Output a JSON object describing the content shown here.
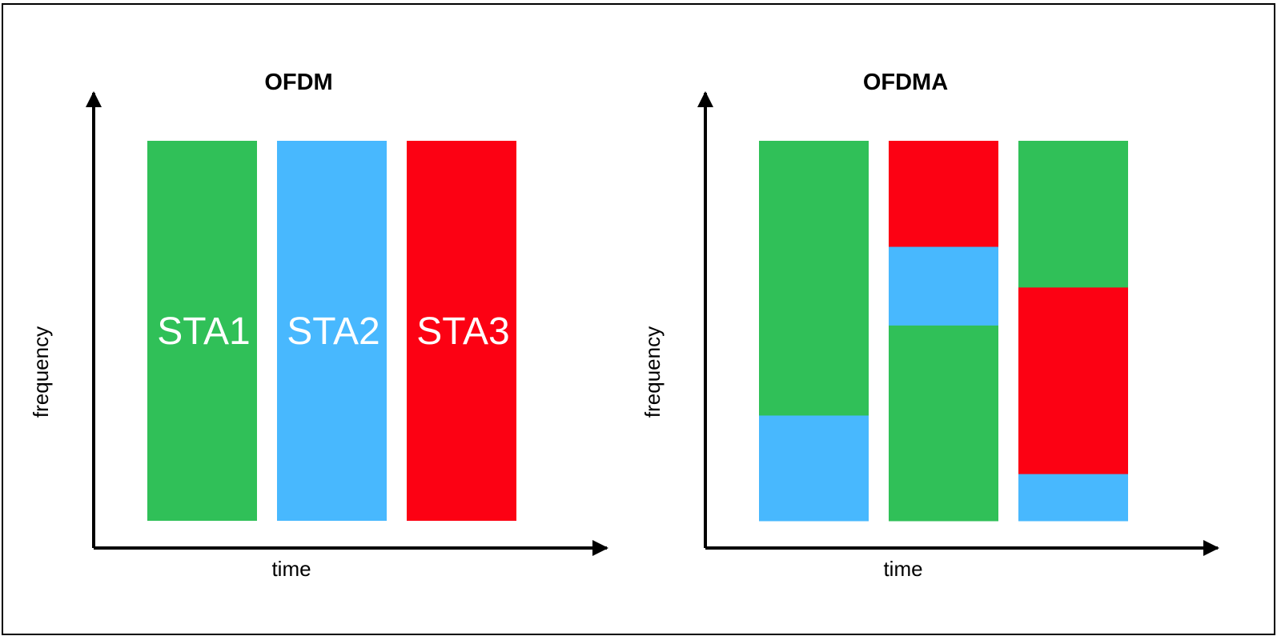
{
  "colors": {
    "green": "#30c058",
    "blue": "#48b8fe",
    "red": "#fc0113",
    "axis": "#000000",
    "frame": "#000000"
  },
  "left_panel": {
    "title": "OFDM",
    "x_label": "time",
    "y_label": "frequency",
    "blocks": [
      {
        "label": "STA1",
        "color": "green"
      },
      {
        "label": "STA2",
        "color": "blue"
      },
      {
        "label": "STA3",
        "color": "red"
      }
    ]
  },
  "right_panel": {
    "title": "OFDMA",
    "x_label": "time",
    "y_label": "frequency",
    "columns": [
      {
        "segments": [
          {
            "color": "blue",
            "fraction": 0.278
          },
          {
            "color": "green",
            "fraction": 0.722
          }
        ]
      },
      {
        "segments": [
          {
            "color": "green",
            "fraction": 0.515
          },
          {
            "color": "blue",
            "fraction": 0.207
          },
          {
            "color": "red",
            "fraction": 0.278
          }
        ]
      },
      {
        "segments": [
          {
            "color": "blue",
            "fraction": 0.124
          },
          {
            "color": "red",
            "fraction": 0.491
          },
          {
            "color": "green",
            "fraction": 0.385
          }
        ]
      }
    ]
  }
}
